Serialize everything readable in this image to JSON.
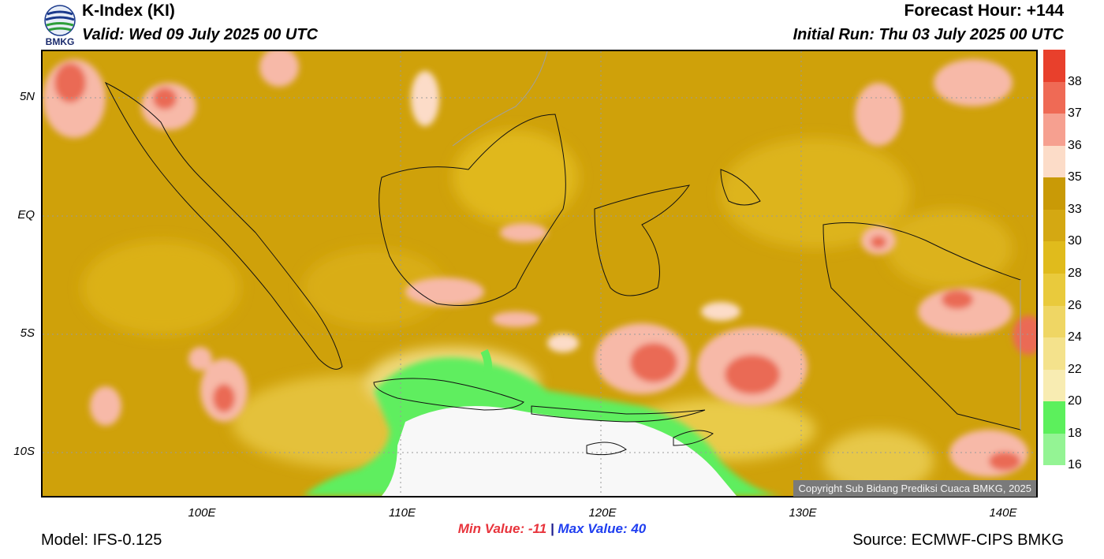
{
  "header": {
    "title": "K-Index (KI)",
    "valid": "Valid: Wed 09 July 2025 00 UTC",
    "forecast_hour": "Forecast Hour: +144",
    "initial_run": "Initial Run: Thu 03 July 2025 00 UTC"
  },
  "logo": {
    "text": "BMKG",
    "icon": "bmkg-logo-icon"
  },
  "axes": {
    "lat_labels": [
      "5N",
      "EQ",
      "5S",
      "10S"
    ],
    "lon_labels": [
      "100E",
      "110E",
      "120E",
      "130E",
      "140E"
    ]
  },
  "legend": {
    "labels": [
      "38",
      "37",
      "36",
      "35",
      "33",
      "30",
      "28",
      "26",
      "24",
      "22",
      "20",
      "18",
      "16"
    ],
    "colors": [
      "#e8402c",
      "#ef6a55",
      "#f6a090",
      "#fcdcc8",
      "#c99a06",
      "#d4a812",
      "#e0bb1c",
      "#e9ca3c",
      "#efd664",
      "#f4e28c",
      "#f8ecb2",
      "#5cf05c",
      "#94f494",
      "#ffffff"
    ]
  },
  "stats": {
    "min_label": "Min Value: -11",
    "separator": "|",
    "max_label": "Max Value:  40"
  },
  "footer": {
    "model": "Model: IFS-0.125",
    "source": "Source: ECMWF-CIPS BMKG",
    "copyright": "Copyright Sub Bidang Prediksi Cuaca BMKG, 2025"
  },
  "colors": {
    "base_fill": "#cfa10a",
    "low_white": "#f8f8f8",
    "low_green": "#5fee5f",
    "high_pink": "#f7b9a8",
    "high_red": "#ea6a55"
  }
}
